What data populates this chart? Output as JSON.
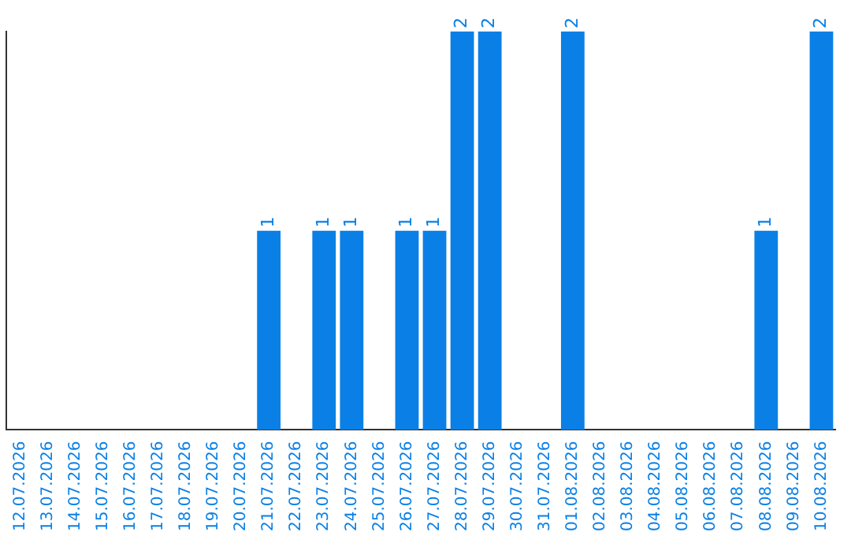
{
  "chart_data": {
    "type": "bar",
    "categories": [
      "12.07.2026",
      "13.07.2026",
      "14.07.2026",
      "15.07.2026",
      "16.07.2026",
      "17.07.2026",
      "18.07.2026",
      "19.07.2026",
      "20.07.2026",
      "21.07.2026",
      "22.07.2026",
      "23.07.2026",
      "24.07.2026",
      "25.07.2026",
      "26.07.2026",
      "27.07.2026",
      "28.07.2026",
      "29.07.2026",
      "30.07.2026",
      "31.07.2026",
      "01.08.2026",
      "02.08.2026",
      "03.08.2026",
      "04.08.2026",
      "05.08.2026",
      "06.08.2026",
      "07.08.2026",
      "08.08.2026",
      "09.08.2026",
      "10.08.2026"
    ],
    "values": [
      0,
      0,
      0,
      0,
      0,
      0,
      0,
      0,
      0,
      1,
      0,
      1,
      1,
      0,
      1,
      1,
      2,
      2,
      0,
      0,
      2,
      0,
      0,
      0,
      0,
      0,
      0,
      1,
      0,
      2
    ],
    "value_labels": [
      null,
      null,
      null,
      null,
      null,
      null,
      null,
      null,
      null,
      "1",
      null,
      "1",
      "1",
      null,
      "1",
      "1",
      "2",
      "2",
      null,
      null,
      "2",
      null,
      null,
      null,
      null,
      null,
      null,
      "1",
      null,
      "2"
    ],
    "color": "#0a80e6",
    "ylim": [
      0,
      2
    ],
    "tick_labels": "x",
    "grid": false,
    "legend": false
  }
}
